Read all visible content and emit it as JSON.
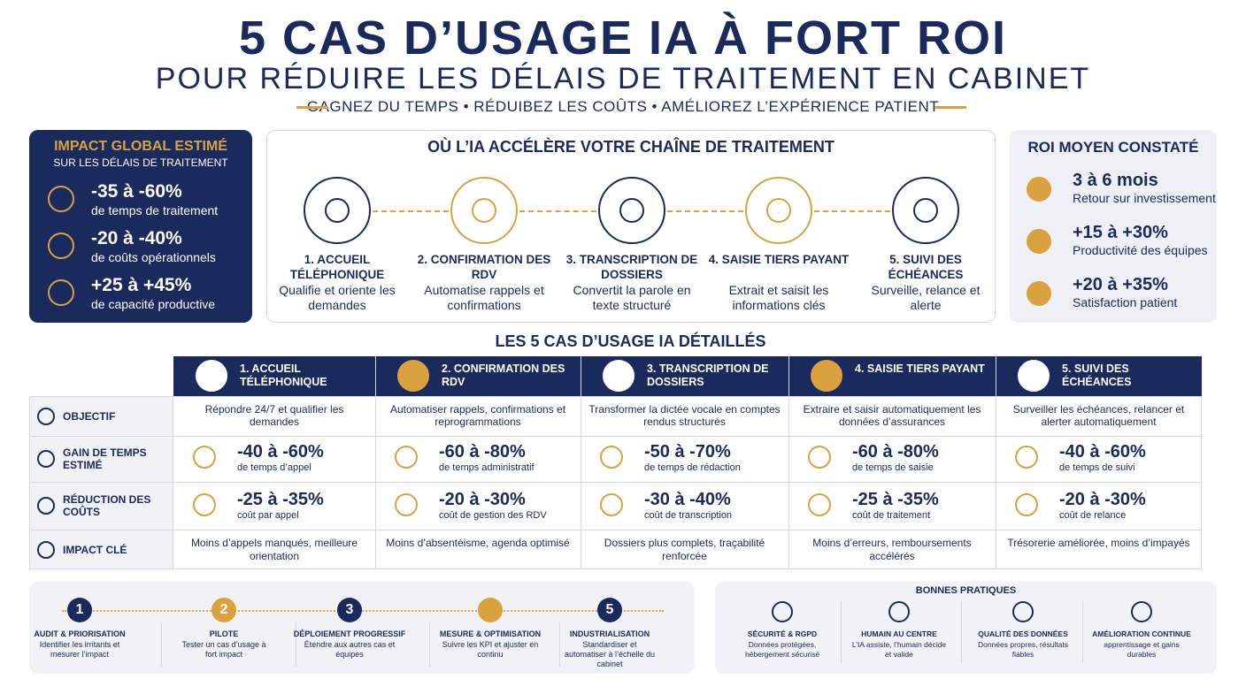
{
  "header": {
    "title": "5 CAS D’USAGE IA À FORT ROI",
    "subtitle": "POUR RÉDUIRE LES DÉLAIS DE TRAITEMENT EN CABINET",
    "tagline": "GAGNEZ DU TEMPS • RÉDUIBEZ LES COÛTS • AMÉLIOREZ L’EXPÉRIENCE PATIENT"
  },
  "impact": {
    "title": "IMPACT GLOBAL ESTIMÉ",
    "subtitle": "SUR LES DÉLAIS DE TRAITEMENT",
    "items": [
      {
        "value": "-35 à -60%",
        "label": "de temps de traitement"
      },
      {
        "value": "-20 à -40%",
        "label": "de coûts opérationnels"
      },
      {
        "value": "+25 à +45%",
        "label": "de capacité productive"
      }
    ]
  },
  "chain": {
    "title": "OÙ L’IA ACCÉLÈRE VOTRE CHAÎNE DE TRAITEMENT",
    "steps": [
      {
        "title": "1. ACCUEIL TÉLÉPHONIQUE",
        "text": "Qualifie et oriente les demandes"
      },
      {
        "title": "2. CONFIRMATION DES RDV",
        "text": "Automatise rappels et confirmations"
      },
      {
        "title": "3. TRANSCRIPTION DE DOSSIERS",
        "text": "Convertit la parole en texte structuré"
      },
      {
        "title": "4. SAISIE TIERS PAYANT",
        "text": "Extrait et saisit les informations clés"
      },
      {
        "title": "5. SUIVI DES ÉCHÉANCES",
        "text": "Surveille, relance et alerte"
      }
    ]
  },
  "roi": {
    "title": "ROI MOYEN CONSTATÉ",
    "items": [
      {
        "value": "3 à 6 mois",
        "label": "Retour sur investissement"
      },
      {
        "value": "+15 à +30%",
        "label": "Productivité des équipes"
      },
      {
        "value": "+20 à +35%",
        "label": "Satisfaction patient"
      }
    ]
  },
  "table": {
    "title": "LES 5 CAS D’USAGE IA DÉTAILLÉS",
    "columns": [
      "1. ACCUEIL TÉLÉPHONIQUE",
      "2. CONFIRMATION DES RDV",
      "3. TRANSCRIPTION DE DOSSIERS",
      "4. SAISIE TIERS PAYANT",
      "5. SUIVI DES ÉCHÉANCES"
    ],
    "row_labels": [
      "OBJECTIF",
      "GAIN DE TEMPS ESTIMÉ",
      "RÉDUCTION DES COÛTS",
      "IMPACT CLÉ"
    ],
    "objectives": [
      "Répondre 24/7 et qualifier les demandes",
      "Automatiser rappels, confirmations et reprogrammations",
      "Transformer la dictée vocale en comptes rendus structurés",
      "Extraire et saisir automatiquement les données d’assurances",
      "Surveiller les échéances, relancer et alerter automatiquement"
    ],
    "time_gains": [
      {
        "value": "-40 à -60%",
        "label": "de temps d’appel"
      },
      {
        "value": "-60 à -80%",
        "label": "de temps administratif"
      },
      {
        "value": "-50 à -70%",
        "label": "de temps de rédaction"
      },
      {
        "value": "-60 à -80%",
        "label": "de temps de saisie"
      },
      {
        "value": "-40 à -60%",
        "label": "de temps de suivi"
      }
    ],
    "cost_reductions": [
      {
        "value": "-25 à -35%",
        "label": "coût par appel"
      },
      {
        "value": "-20 à -30%",
        "label": "coût de gestion des RDV"
      },
      {
        "value": "-30 à -40%",
        "label": "coût de transcription"
      },
      {
        "value": "-25 à -35%",
        "label": "coût de traitement"
      },
      {
        "value": "-20 à -30%",
        "label": "coût de relance"
      }
    ],
    "key_impacts": [
      "Moins d’appels manqués, meilleure orientation",
      "Moins d’absentéisme, agenda optimisé",
      "Dossiers plus complets, traçabilité renforcée",
      "Moins d’erreurs, remboursements accélérés",
      "Trésorerie améliorée, moins d’impayés"
    ]
  },
  "roadmap": {
    "steps": [
      {
        "number": "1",
        "title": "AUDIT & PRIORISATION",
        "text": "Identifier les irritants et mesurer l’impact"
      },
      {
        "number": "2",
        "title": "PILOTE",
        "text": "Tester un cas d’usage à fort impact"
      },
      {
        "number": "3",
        "title": "DÉPLOIEMENT PROGRESSIF",
        "text": "Étendre aux autres cas et équipes"
      },
      {
        "title": "MESURE & OPTIMISATION",
        "text": "Suivre les KPI et ajuster en continu"
      },
      {
        "number": "5",
        "title": "INDUSTRIALISATION",
        "text": "Standardiser et automatiser à l’échelle du cabinet"
      }
    ]
  },
  "practices": {
    "title": "BONNES PRATIQUES",
    "items": [
      {
        "title": "SÉCURITÉ & RGPD",
        "text": "Données protégées, hébergement sécurisé"
      },
      {
        "title": "HUMAIN AU CENTRE",
        "text": "L’IA assiste, l’humain décide et valide"
      },
      {
        "title": "QUALITÉ DES DONNÉES",
        "text": "Données propres, résultats fiables"
      },
      {
        "title": "AMÉLIORATION CONTINUE",
        "text": "apprentissage et gains durables"
      }
    ]
  }
}
